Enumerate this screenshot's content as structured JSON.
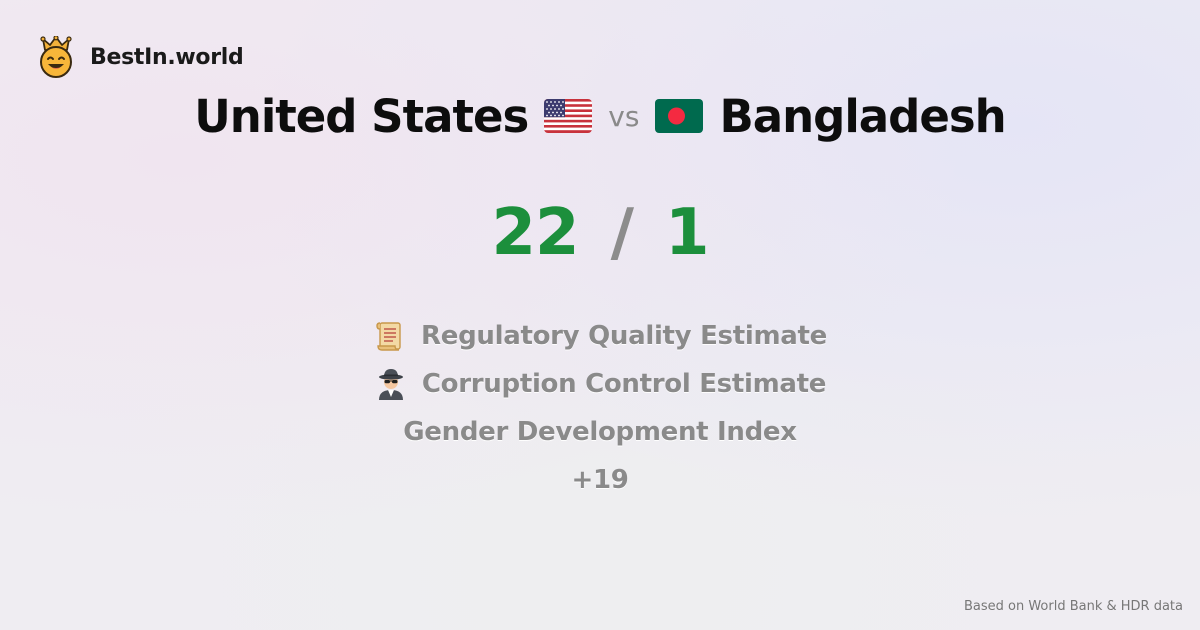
{
  "brand": {
    "name": "BestIn.world",
    "logo_icon": "crown-smiley-icon"
  },
  "comparison": {
    "country_a": "United States",
    "country_a_flag": "us-flag-icon",
    "vs_label": "vs",
    "country_b": "Bangladesh",
    "country_b_flag": "bangladesh-flag-icon"
  },
  "score": {
    "a": "22",
    "separator": "/",
    "b": "1",
    "winner_color": "#1c8f3c"
  },
  "metrics": [
    {
      "icon": "scroll-icon",
      "label": "Regulatory Quality Estimate"
    },
    {
      "icon": "detective-icon",
      "label": "Corruption Control Estimate"
    },
    {
      "icon": "",
      "label": "Gender Development Index"
    },
    {
      "icon": "",
      "label": "+19"
    }
  ],
  "footer": {
    "source": "Based on World Bank & HDR data"
  }
}
